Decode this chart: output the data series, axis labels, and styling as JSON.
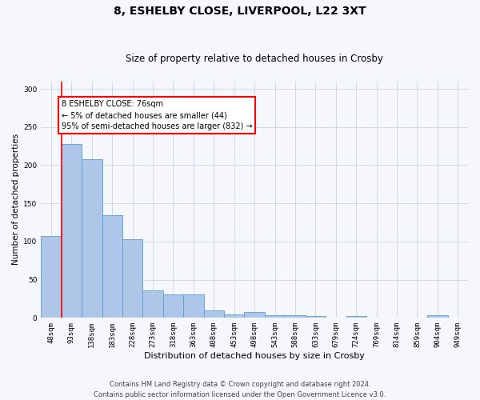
{
  "title1": "8, ESHELBY CLOSE, LIVERPOOL, L22 3XT",
  "title2": "Size of property relative to detached houses in Crosby",
  "xlabel": "Distribution of detached houses by size in Crosby",
  "ylabel": "Number of detached properties",
  "categories": [
    "48sqm",
    "93sqm",
    "138sqm",
    "183sqm",
    "228sqm",
    "273sqm",
    "318sqm",
    "363sqm",
    "408sqm",
    "453sqm",
    "498sqm",
    "543sqm",
    "588sqm",
    "633sqm",
    "679sqm",
    "724sqm",
    "769sqm",
    "814sqm",
    "859sqm",
    "904sqm",
    "949sqm"
  ],
  "values": [
    107,
    228,
    208,
    135,
    103,
    36,
    31,
    31,
    10,
    5,
    8,
    4,
    3,
    2,
    0,
    2,
    0,
    0,
    0,
    4,
    0
  ],
  "bar_color": "#aec6e8",
  "bar_edge_color": "#5a9fd4",
  "annotation_box_text": "8 ESHELBY CLOSE: 76sqm\n← 5% of detached houses are smaller (44)\n95% of semi-detached houses are larger (832) →",
  "annotation_box_color": "white",
  "annotation_box_edge_color": "red",
  "vline_x": 0.5,
  "vline_color": "red",
  "grid_color": "#d0d8e8",
  "ylim": [
    0,
    310
  ],
  "yticks": [
    0,
    50,
    100,
    150,
    200,
    250,
    300
  ],
  "footnote1": "Contains HM Land Registry data © Crown copyright and database right 2024.",
  "footnote2": "Contains public sector information licensed under the Open Government Licence v3.0.",
  "bg_color": "#f5f7fb",
  "plot_bg_color": "#f5f7fb",
  "title1_fontsize": 10,
  "title2_fontsize": 8.5,
  "ylabel_fontsize": 7.5,
  "xlabel_fontsize": 8,
  "tick_fontsize": 6.5,
  "annot_fontsize": 7,
  "footnote_fontsize": 6
}
